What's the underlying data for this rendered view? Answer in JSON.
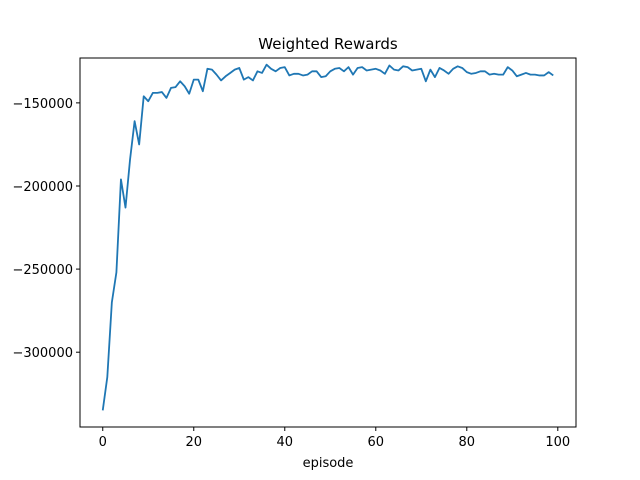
{
  "chart_data": {
    "type": "line",
    "title": "Weighted Rewards",
    "xlabel": "episode",
    "ylabel": "",
    "xlim": [
      -5,
      104
    ],
    "ylim": [
      -345000,
      -123000
    ],
    "xticks": [
      0,
      20,
      40,
      60,
      80,
      100
    ],
    "yticks": [
      -300000,
      -250000,
      -200000,
      -150000
    ],
    "xtick_labels": [
      "0",
      "20",
      "40",
      "60",
      "80",
      "100"
    ],
    "ytick_labels": [
      "−300000",
      "−250000",
      "−200000",
      "−150000"
    ],
    "grid": false,
    "series": [
      {
        "color": "#1f77b4",
        "x": [
          0,
          1,
          2,
          3,
          4,
          5,
          6,
          7,
          8,
          9,
          10,
          11,
          12,
          13,
          14,
          15,
          16,
          17,
          18,
          19,
          20,
          21,
          22,
          23,
          24,
          25,
          26,
          27,
          28,
          29,
          30,
          31,
          32,
          33,
          34,
          35,
          36,
          37,
          38,
          39,
          40,
          41,
          42,
          43,
          44,
          45,
          46,
          47,
          48,
          49,
          50,
          51,
          52,
          53,
          54,
          55,
          56,
          57,
          58,
          59,
          60,
          61,
          62,
          63,
          64,
          65,
          66,
          67,
          68,
          69,
          70,
          71,
          72,
          73,
          74,
          75,
          76,
          77,
          78,
          79,
          80,
          81,
          82,
          83,
          84,
          85,
          86,
          87,
          88,
          89,
          90,
          91,
          92,
          93,
          94,
          95,
          96,
          97,
          98,
          99
        ],
        "values": [
          -335000,
          -315000,
          -270000,
          -252000,
          -196000,
          -213000,
          -184000,
          -161000,
          -175000,
          -146000,
          -149000,
          -144000,
          -144000,
          -143500,
          -147000,
          -141000,
          -140500,
          -137000,
          -140000,
          -144500,
          -136000,
          -136000,
          -143000,
          -129500,
          -130000,
          -133000,
          -136500,
          -134000,
          -132000,
          -130000,
          -129000,
          -136000,
          -134500,
          -136500,
          -131000,
          -132000,
          -127000,
          -129500,
          -131000,
          -129000,
          -128500,
          -133500,
          -132500,
          -132500,
          -133500,
          -133000,
          -131000,
          -131000,
          -134500,
          -134000,
          -131000,
          -129500,
          -129000,
          -131000,
          -128500,
          -133000,
          -129000,
          -128500,
          -130500,
          -130000,
          -129500,
          -130500,
          -132500,
          -127500,
          -130000,
          -130500,
          -128000,
          -128500,
          -130500,
          -130000,
          -129500,
          -137000,
          -130000,
          -134500,
          -129000,
          -130500,
          -132500,
          -129500,
          -128000,
          -129000,
          -131500,
          -132500,
          -132000,
          -131000,
          -131000,
          -133000,
          -132500,
          -133000,
          -133000,
          -128500,
          -130500,
          -134000,
          -133000,
          -132000,
          -133000,
          -133000,
          -133500,
          -133500,
          -131500,
          -133500
        ]
      }
    ]
  }
}
